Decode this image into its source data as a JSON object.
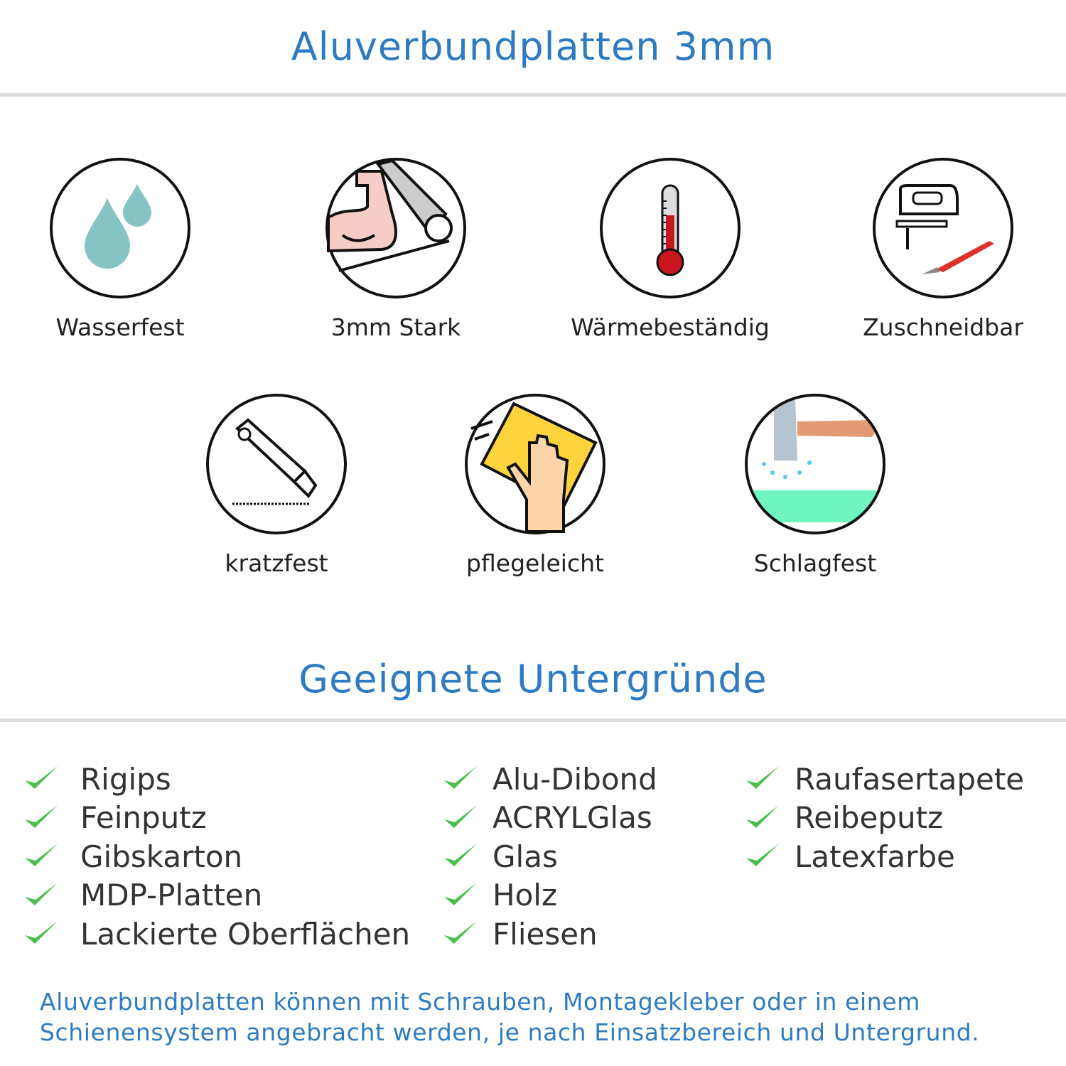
{
  "header": {
    "title": "Aluverbundplatten 3mm"
  },
  "features": [
    {
      "label": "Wasserfest",
      "icon": "water-drops-icon"
    },
    {
      "label": "3mm Stark",
      "icon": "strong-arm-icon"
    },
    {
      "label": "Wärmebeständig",
      "icon": "thermometer-icon"
    },
    {
      "label": "Zuschneidbar",
      "icon": "jigsaw-icon"
    },
    {
      "label": "kratzfest",
      "icon": "cutter-knife-icon"
    },
    {
      "label": "pflegeleicht",
      "icon": "cleaning-hand-icon"
    },
    {
      "label": "Schlagfest",
      "icon": "hammer-icon"
    }
  ],
  "surfaces": {
    "title": "Geeignete Untergründe",
    "columns": [
      [
        "Rigips",
        "Feinputz",
        "Gibskarton",
        "MDP-Platten",
        "Lackierte Oberflächen"
      ],
      [
        "Alu-Dibond",
        "ACRYLGlas",
        "Glas",
        "Holz",
        "Fliesen"
      ],
      [
        "Raufasertapete",
        "Reibeputz",
        "Latexfarbe"
      ]
    ]
  },
  "note": {
    "line1": "Aluverbundplatten können mit Schrauben, Montagekleber oder in einem",
    "line2": "Schienensystem angebracht werden, je nach Einsatzbereich und Untergrund."
  },
  "colors": {
    "accent": "#2e7bc4",
    "check": "#4cbf4f",
    "rule": "#dcdcdc"
  }
}
